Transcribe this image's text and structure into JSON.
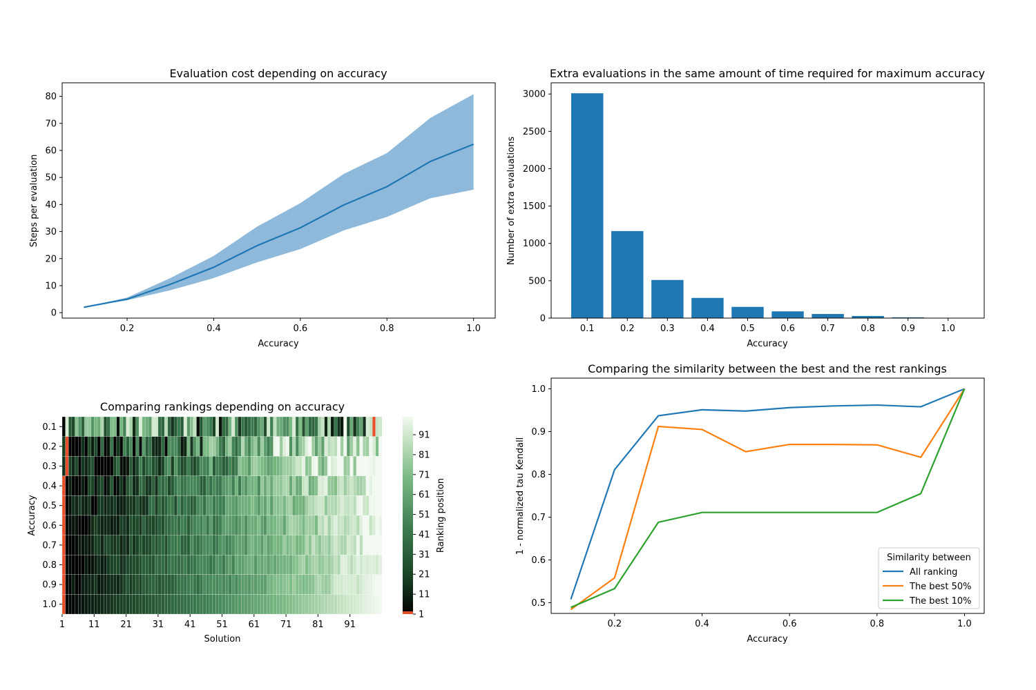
{
  "colors": {
    "blue": "#1f77b4",
    "band": "#8fb9da",
    "orange": "#ff7f0e",
    "green": "#2ca02c",
    "highlight": "#e4502c"
  },
  "chart_data": [
    {
      "type": "line",
      "title": "Evaluation cost depending on accuracy",
      "xlabel": "Accuracy",
      "ylabel": "Steps per evaluation",
      "xlim": [
        0.05,
        1.05
      ],
      "ylim": [
        -2,
        85
      ],
      "xticks": [
        "0.2",
        "0.4",
        "0.6",
        "0.8",
        "1.0"
      ],
      "yticks": [
        "0",
        "10",
        "20",
        "30",
        "40",
        "50",
        "60",
        "70",
        "80"
      ],
      "x": [
        0.1,
        0.2,
        0.3,
        0.4,
        0.5,
        0.6,
        0.7,
        0.8,
        0.9,
        1.0
      ],
      "series": [
        {
          "mean": [
            2.0,
            5.0,
            10.5,
            16.8,
            24.8,
            31.4,
            39.8,
            46.6,
            55.9,
            62.3
          ],
          "upper": [
            2.0,
            5.6,
            12.8,
            21.0,
            31.8,
            40.5,
            51.3,
            59.0,
            72.0,
            80.8
          ],
          "lower": [
            2.0,
            4.6,
            8.3,
            12.8,
            18.6,
            23.5,
            30.4,
            35.4,
            42.3,
            45.5
          ]
        }
      ]
    },
    {
      "type": "bar",
      "title": "Extra evaluations in the same amount of time required for maximum accuracy",
      "xlabel": "Accuracy",
      "ylabel": "Number of extra evaluations",
      "ylim": [
        0,
        3150
      ],
      "yticks": [
        "0",
        "500",
        "1000",
        "1500",
        "2000",
        "2500",
        "3000"
      ],
      "categories": [
        "0.1",
        "0.2",
        "0.3",
        "0.4",
        "0.5",
        "0.6",
        "0.7",
        "0.8",
        "0.9",
        "1.0"
      ],
      "values": [
        3010,
        1165,
        510,
        270,
        150,
        90,
        55,
        28,
        10,
        0
      ]
    },
    {
      "type": "heatmap",
      "title": "Comparing rankings depending on accuracy",
      "xlabel": "Solution",
      "ylabel": "Accuracy",
      "colorbar_label": "Ranking position",
      "rows": [
        "0.1",
        "0.2",
        "0.3",
        "0.4",
        "0.5",
        "0.6",
        "0.7",
        "0.8",
        "0.9",
        "1.0"
      ],
      "xticks": [
        "1",
        "11",
        "21",
        "31",
        "41",
        "51",
        "61",
        "71",
        "81",
        "91"
      ],
      "colorbar_ticks": [
        "1",
        "11",
        "21",
        "31",
        "41",
        "51",
        "61",
        "71",
        "81",
        "91"
      ],
      "n_solutions": 100,
      "value_range": [
        1,
        100
      ]
    },
    {
      "type": "line",
      "title": "Comparing the similarity between the best and the rest rankings",
      "xlabel": "Accuracy",
      "ylabel": "1 - normalized tau Kendall",
      "xlim": [
        0.055,
        1.045
      ],
      "ylim": [
        0.475,
        1.025
      ],
      "xticks": [
        "0.2",
        "0.4",
        "0.6",
        "0.8",
        "1.0"
      ],
      "yticks": [
        "0.5",
        "0.6",
        "0.7",
        "0.8",
        "0.9",
        "1.0"
      ],
      "x": [
        0.1,
        0.2,
        0.3,
        0.4,
        0.5,
        0.6,
        0.7,
        0.8,
        0.9,
        1.0
      ],
      "legend_title": "Similarity between",
      "legend_position": "lower-right",
      "series": [
        {
          "name": "All ranking",
          "values": [
            0.508,
            0.811,
            0.937,
            0.951,
            0.948,
            0.956,
            0.96,
            0.962,
            0.958,
            1.0
          ]
        },
        {
          "name": "The best 50%",
          "values": [
            0.484,
            0.558,
            0.912,
            0.905,
            0.853,
            0.87,
            0.87,
            0.869,
            0.84,
            1.0
          ]
        },
        {
          "name": "The best 10%",
          "values": [
            0.489,
            0.533,
            0.688,
            0.711,
            0.711,
            0.711,
            0.711,
            0.711,
            0.755,
            1.0
          ]
        }
      ]
    }
  ]
}
